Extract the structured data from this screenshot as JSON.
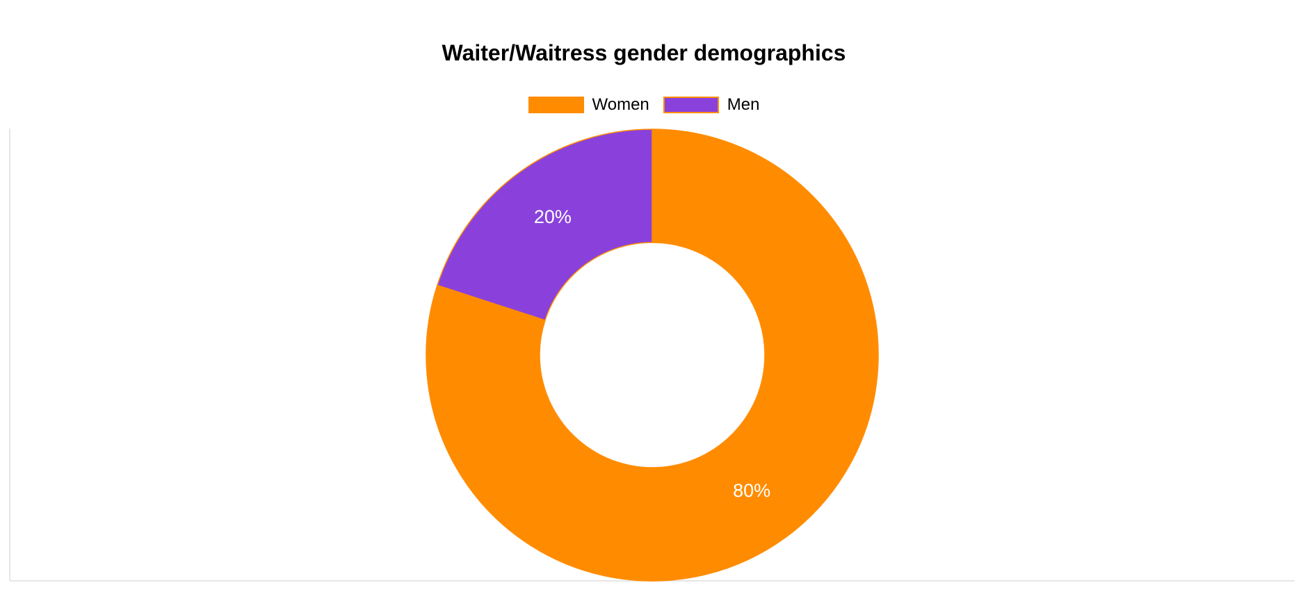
{
  "chart_data": {
    "type": "pie",
    "variant": "doughnut",
    "title": "Waiter/Waitress gender demographics",
    "legend_position": "top",
    "categories": [
      "Women",
      "Men"
    ],
    "values": [
      80,
      20
    ],
    "data_labels": [
      "80%",
      "20%"
    ],
    "colors": [
      "#ff8c00",
      "#8a41dc"
    ],
    "border_color": "#ff8c00"
  }
}
